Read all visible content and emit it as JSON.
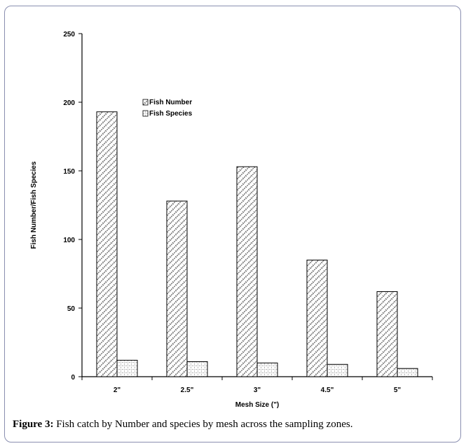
{
  "caption": {
    "label": "Figure 3:",
    "text": "Fish catch by Number and species by mesh across the sampling zones."
  },
  "chart_data": {
    "type": "bar",
    "title": "",
    "xlabel": "Mesh Size (\")",
    "ylabel": "Fish Number/Fish Species",
    "categories": [
      "2\"",
      "2.5\"",
      "3\"",
      "4.5\"",
      "5\""
    ],
    "ylim": [
      0,
      250
    ],
    "yticks": [
      0,
      50,
      100,
      150,
      200,
      250
    ],
    "grid": false,
    "legend_position": "top-left",
    "series": [
      {
        "name": "Fish Number",
        "values": [
          193,
          128,
          153,
          85,
          62
        ],
        "pattern": "cross-hatch"
      },
      {
        "name": "Fish Species",
        "values": [
          12,
          11,
          10,
          9,
          6
        ],
        "pattern": "dotted-grid"
      }
    ]
  }
}
